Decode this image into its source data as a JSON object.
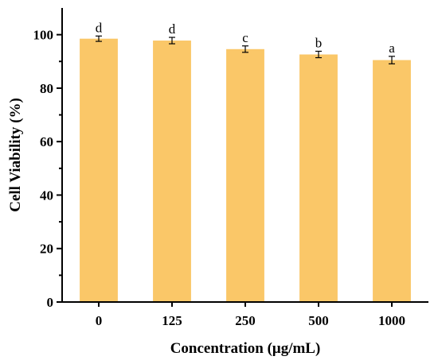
{
  "chart_data": {
    "type": "bar",
    "title": "",
    "xlabel": "Concentration (μg/mL)",
    "ylabel": "Cell Viability (%)",
    "categories": [
      "0",
      "125",
      "250",
      "500",
      "1000"
    ],
    "values": [
      98.5,
      97.8,
      94.6,
      92.6,
      90.5
    ],
    "errors": [
      1.0,
      1.2,
      1.2,
      1.2,
      1.4
    ],
    "significance": [
      "d",
      "d",
      "c",
      "b",
      "a"
    ],
    "ylim": [
      0,
      110
    ],
    "yticks": [
      0,
      20,
      40,
      60,
      80,
      100
    ],
    "bar_color": "#FAC768",
    "grid": false
  }
}
